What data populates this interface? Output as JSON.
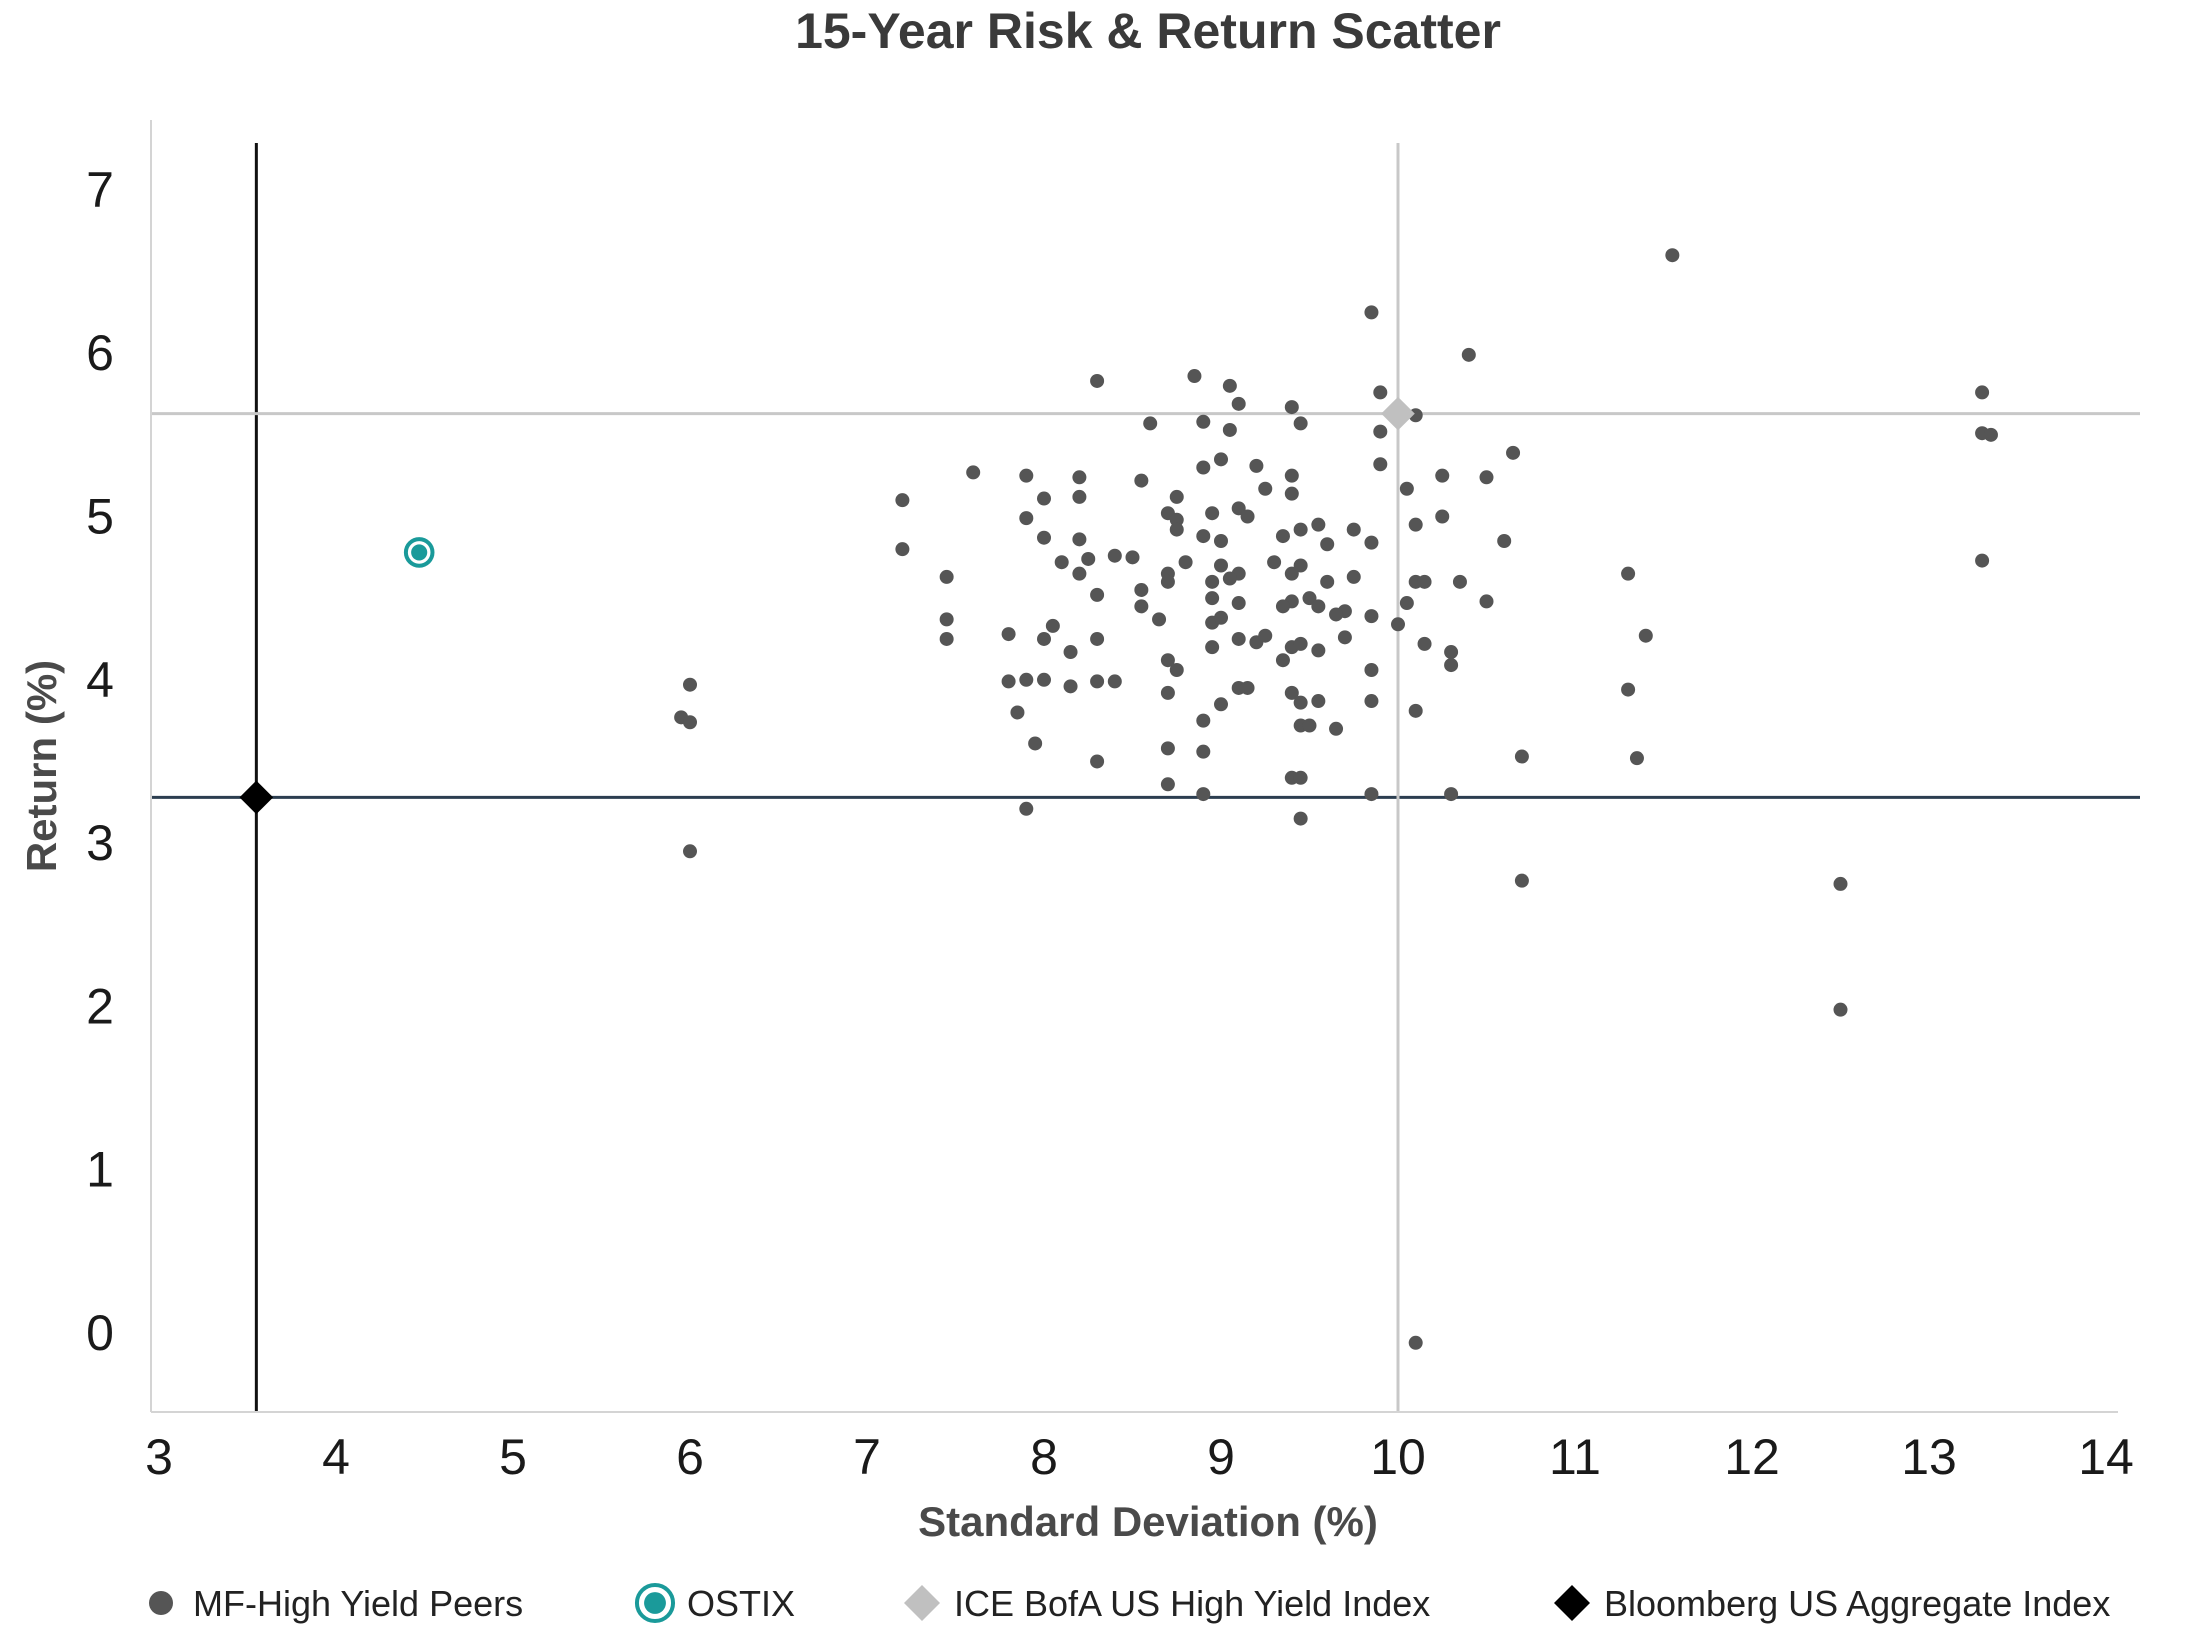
{
  "chart_data": {
    "type": "scatter",
    "title": "15-Year Risk & Return Scatter",
    "xlabel": "Standard Deviation (%)",
    "ylabel": "Return (%)",
    "xlim": [
      3,
      14
    ],
    "ylim": [
      -0.5,
      7.5
    ],
    "xticks": [
      3,
      4,
      5,
      6,
      7,
      8,
      9,
      10,
      11,
      12,
      13,
      14
    ],
    "yticks": [
      0,
      1,
      2,
      3,
      4,
      5,
      6,
      7
    ],
    "grid": false,
    "legend_position": "bottom",
    "reference_lines": [
      {
        "orientation": "vertical",
        "x": 3.55,
        "color": "#111111"
      },
      {
        "orientation": "horizontal",
        "y": 3.28,
        "color": "#2c3e50"
      },
      {
        "orientation": "vertical",
        "x": 10.0,
        "color": "#c8c8c8"
      },
      {
        "orientation": "horizontal",
        "y": 5.63,
        "color": "#c8c8c8"
      }
    ],
    "series": [
      {
        "name": "MF-High Yield Peers",
        "marker": "circle",
        "color": "#555555",
        "points": [
          [
            11.55,
            6.6
          ],
          [
            9.85,
            6.25
          ],
          [
            10.4,
            5.99
          ],
          [
            8.3,
            5.83
          ],
          [
            8.85,
            5.86
          ],
          [
            9.05,
            5.8
          ],
          [
            9.1,
            5.69
          ],
          [
            9.4,
            5.67
          ],
          [
            9.9,
            5.76
          ],
          [
            8.6,
            5.57
          ],
          [
            8.9,
            5.58
          ],
          [
            9.05,
            5.53
          ],
          [
            9.45,
            5.57
          ],
          [
            9.9,
            5.52
          ],
          [
            10.1,
            5.62
          ],
          [
            13.3,
            5.76
          ],
          [
            13.3,
            5.51
          ],
          [
            13.35,
            5.5
          ],
          [
            7.6,
            5.27
          ],
          [
            7.9,
            5.25
          ],
          [
            8.2,
            5.24
          ],
          [
            8.55,
            5.22
          ],
          [
            8.9,
            5.3
          ],
          [
            9.0,
            5.35
          ],
          [
            9.2,
            5.31
          ],
          [
            9.4,
            5.25
          ],
          [
            9.9,
            5.32
          ],
          [
            10.25,
            5.25
          ],
          [
            10.5,
            5.24
          ],
          [
            10.65,
            5.39
          ],
          [
            10.05,
            5.17
          ],
          [
            7.2,
            5.1
          ],
          [
            8.0,
            5.11
          ],
          [
            8.2,
            5.12
          ],
          [
            8.75,
            5.12
          ],
          [
            9.25,
            5.17
          ],
          [
            9.4,
            5.14
          ],
          [
            7.9,
            4.99
          ],
          [
            8.7,
            5.02
          ],
          [
            8.75,
            4.98
          ],
          [
            8.95,
            5.02
          ],
          [
            9.1,
            5.05
          ],
          [
            9.15,
            5.0
          ],
          [
            10.1,
            4.95
          ],
          [
            10.25,
            5.0
          ],
          [
            8.0,
            4.87
          ],
          [
            8.2,
            4.86
          ],
          [
            8.75,
            4.92
          ],
          [
            8.9,
            4.88
          ],
          [
            9.0,
            4.85
          ],
          [
            9.35,
            4.88
          ],
          [
            9.45,
            4.92
          ],
          [
            9.55,
            4.95
          ],
          [
            9.6,
            4.83
          ],
          [
            9.75,
            4.92
          ],
          [
            9.85,
            4.84
          ],
          [
            10.6,
            4.85
          ],
          [
            7.2,
            4.8
          ],
          [
            8.1,
            4.72
          ],
          [
            8.25,
            4.74
          ],
          [
            8.4,
            4.76
          ],
          [
            8.5,
            4.75
          ],
          [
            8.7,
            4.65
          ],
          [
            8.8,
            4.72
          ],
          [
            9.0,
            4.7
          ],
          [
            9.1,
            4.65
          ],
          [
            9.3,
            4.72
          ],
          [
            9.45,
            4.7
          ],
          [
            7.45,
            4.63
          ],
          [
            8.2,
            4.65
          ],
          [
            8.7,
            4.6
          ],
          [
            8.95,
            4.6
          ],
          [
            9.05,
            4.62
          ],
          [
            9.4,
            4.65
          ],
          [
            9.6,
            4.6
          ],
          [
            9.75,
            4.63
          ],
          [
            10.1,
            4.6
          ],
          [
            10.15,
            4.6
          ],
          [
            10.35,
            4.6
          ],
          [
            11.3,
            4.65
          ],
          [
            13.3,
            4.73
          ],
          [
            8.3,
            4.52
          ],
          [
            8.55,
            4.55
          ],
          [
            8.95,
            4.5
          ],
          [
            9.4,
            4.48
          ],
          [
            9.5,
            4.5
          ],
          [
            8.55,
            4.45
          ],
          [
            9.1,
            4.47
          ],
          [
            9.35,
            4.45
          ],
          [
            9.55,
            4.45
          ],
          [
            9.7,
            4.42
          ],
          [
            10.05,
            4.47
          ],
          [
            10.5,
            4.48
          ],
          [
            7.45,
            4.37
          ],
          [
            8.05,
            4.33
          ],
          [
            8.65,
            4.37
          ],
          [
            8.95,
            4.35
          ],
          [
            9.0,
            4.38
          ],
          [
            9.65,
            4.4
          ],
          [
            9.85,
            4.39
          ],
          [
            10.0,
            4.34
          ],
          [
            7.45,
            4.25
          ],
          [
            7.8,
            4.28
          ],
          [
            8.0,
            4.25
          ],
          [
            8.3,
            4.25
          ],
          [
            8.95,
            4.2
          ],
          [
            9.1,
            4.25
          ],
          [
            9.2,
            4.23
          ],
          [
            9.25,
            4.27
          ],
          [
            9.4,
            4.2
          ],
          [
            9.45,
            4.22
          ],
          [
            9.55,
            4.18
          ],
          [
            9.7,
            4.26
          ],
          [
            10.15,
            4.22
          ],
          [
            10.3,
            4.17
          ],
          [
            11.4,
            4.27
          ],
          [
            8.15,
            4.17
          ],
          [
            8.7,
            4.12
          ],
          [
            9.35,
            4.12
          ],
          [
            8.75,
            4.06
          ],
          [
            9.85,
            4.06
          ],
          [
            10.3,
            4.09
          ],
          [
            6.0,
            3.97
          ],
          [
            7.8,
            3.99
          ],
          [
            7.9,
            4.0
          ],
          [
            8.0,
            4.0
          ],
          [
            8.15,
            3.96
          ],
          [
            8.3,
            3.99
          ],
          [
            8.4,
            3.99
          ],
          [
            9.1,
            3.95
          ],
          [
            9.15,
            3.95
          ],
          [
            8.7,
            3.92
          ],
          [
            9.4,
            3.92
          ],
          [
            11.3,
            3.94
          ],
          [
            9.0,
            3.85
          ],
          [
            9.45,
            3.86
          ],
          [
            9.55,
            3.87
          ],
          [
            9.85,
            3.87
          ],
          [
            5.95,
            3.77
          ],
          [
            6.0,
            3.74
          ],
          [
            7.85,
            3.8
          ],
          [
            8.9,
            3.75
          ],
          [
            9.45,
            3.72
          ],
          [
            9.5,
            3.72
          ],
          [
            9.65,
            3.7
          ],
          [
            10.1,
            3.81
          ],
          [
            7.95,
            3.61
          ],
          [
            8.7,
            3.58
          ],
          [
            8.9,
            3.56
          ],
          [
            8.3,
            3.5
          ],
          [
            10.7,
            3.53
          ],
          [
            11.35,
            3.52
          ],
          [
            9.4,
            3.4
          ],
          [
            9.45,
            3.4
          ],
          [
            8.7,
            3.36
          ],
          [
            8.9,
            3.3
          ],
          [
            9.85,
            3.3
          ],
          [
            10.3,
            3.3
          ],
          [
            7.9,
            3.21
          ],
          [
            9.45,
            3.15
          ],
          [
            6.0,
            2.95
          ],
          [
            10.7,
            2.77
          ],
          [
            12.5,
            2.75
          ],
          [
            12.5,
            1.98
          ],
          [
            10.1,
            -0.06
          ]
        ]
      },
      {
        "name": "OSTIX",
        "marker": "ringed-circle",
        "color": "#1a9a9a",
        "points": [
          [
            4.47,
            4.78
          ]
        ]
      },
      {
        "name": "ICE BofA US High Yield Index",
        "marker": "diamond",
        "color": "#c0c0c0",
        "points": [
          [
            10.0,
            5.63
          ]
        ]
      },
      {
        "name": "Bloomberg US Aggregate Index",
        "marker": "diamond",
        "color": "#000000",
        "points": [
          [
            3.55,
            3.28
          ]
        ]
      }
    ]
  }
}
